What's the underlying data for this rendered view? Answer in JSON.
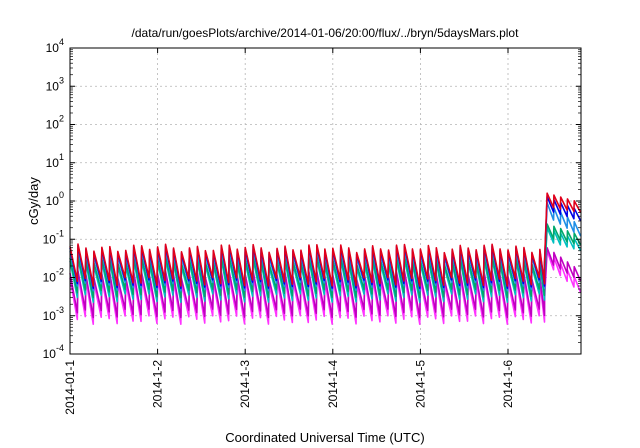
{
  "chart_data": {
    "type": "line",
    "title": "/data/run/goesPlots/archive/2014-01-06/20:00/flux/../bryn/5daysMars.plot",
    "xlabel": "Coordinated Universal Time (UTC)",
    "ylabel": "cGy/day",
    "x_range": [
      "2014-01-01",
      "2014-01-06 20:00"
    ],
    "x_ticks": [
      "2014-01-1",
      "2014-1-2",
      "2014-1-3",
      "2014-1-4",
      "2014-1-5",
      "2014-1-6"
    ],
    "ylim": [
      0.0001,
      10000
    ],
    "yscale": "log",
    "y_ticks": [
      {
        "base": "10",
        "exp": "4"
      },
      {
        "base": "10",
        "exp": "3"
      },
      {
        "base": "10",
        "exp": "2"
      },
      {
        "base": "10",
        "exp": "1"
      },
      {
        "base": "10",
        "exp": "0"
      },
      {
        "base": "10",
        "exp": "-1"
      },
      {
        "base": "10",
        "exp": "-2"
      },
      {
        "base": "10",
        "exp": "-3"
      },
      {
        "base": "10",
        "exp": "-4"
      }
    ],
    "grid": true,
    "pattern": "sawtooth, ~11 cycles per day",
    "series": [
      {
        "color": "#e0001b",
        "peak": 0.06,
        "trough": 0.008,
        "event_peak": 1.6,
        "event_end": 0.5
      },
      {
        "color": "#0000e6",
        "peak": 0.055,
        "trough": 0.007,
        "event_peak": 1.3,
        "event_end": 0.3
      },
      {
        "color": "#1f8fe6",
        "peak": 0.045,
        "trough": 0.006,
        "event_peak": 0.9,
        "event_end": 0.12
      },
      {
        "color": "#00a86b",
        "peak": 0.03,
        "trough": 0.004,
        "event_peak": 0.25,
        "event_end": 0.07
      },
      {
        "color": "#00c0c0",
        "peak": 0.025,
        "trough": 0.003,
        "event_peak": 0.2,
        "event_end": 0.05
      },
      {
        "color": "#c000c0",
        "peak": 0.012,
        "trough": 0.0012,
        "event_peak": 0.06,
        "event_end": 0.008
      },
      {
        "color": "#ff33ff",
        "peak": 0.009,
        "trough": 0.0008,
        "event_peak": 0.05,
        "event_end": 0.004
      }
    ],
    "x_event_start": "2014-01-06 10:00"
  }
}
